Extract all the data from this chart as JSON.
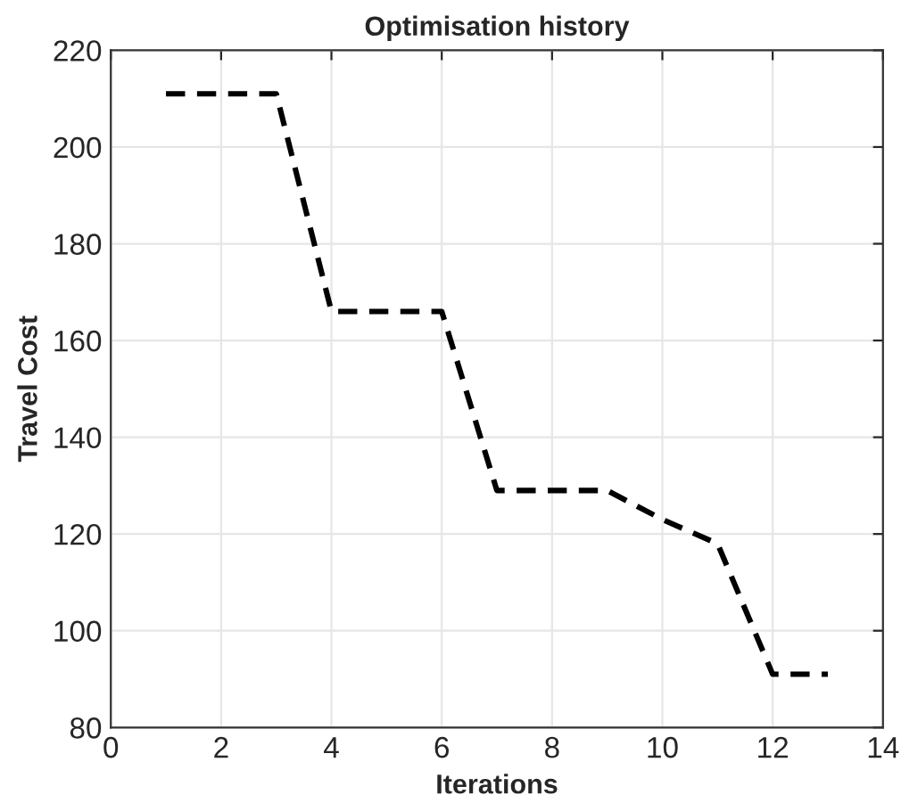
{
  "chart_data": {
    "type": "line",
    "title": "Optimisation history",
    "xlabel": "Iterations",
    "ylabel": "Travel Cost",
    "x": [
      1,
      2,
      3,
      4,
      5,
      6,
      7,
      8,
      9,
      10,
      11,
      12,
      13
    ],
    "series": [
      {
        "color": "#000000",
        "values": [
          211,
          211,
          211,
          166,
          166,
          166,
          129,
          129,
          129,
          123,
          118,
          91,
          91
        ]
      }
    ],
    "xlim": [
      0,
      14
    ],
    "xticks": [
      0,
      2,
      4,
      6,
      8,
      10,
      12,
      14
    ],
    "ylim": [
      80,
      220
    ],
    "yticks": [
      80,
      100,
      120,
      140,
      160,
      180,
      200,
      220
    ],
    "grid": true,
    "line_style": "dashed",
    "marker": "none"
  }
}
